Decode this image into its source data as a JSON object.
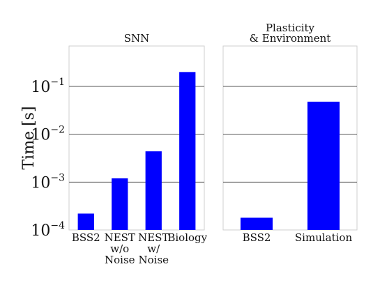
{
  "chart_data": [
    {
      "type": "bar",
      "title": "SNN",
      "ylabel": "Time [s]",
      "yscale": "log",
      "ylim": [
        0.0001,
        0.7
      ],
      "yticks": [
        {
          "value": 0.0001,
          "base": "10",
          "exp": "−4"
        },
        {
          "value": 0.001,
          "base": "10",
          "exp": "−3"
        },
        {
          "value": 0.01,
          "base": "10",
          "exp": "−2"
        },
        {
          "value": 0.1,
          "base": "10",
          "exp": "−1"
        }
      ],
      "grid": true,
      "bar_color": "#0000ff",
      "categories": [
        [
          "BSS2"
        ],
        [
          "NEST",
          "w/o",
          "Noise"
        ],
        [
          "NEST",
          "w/",
          "Noise"
        ],
        [
          "Biology"
        ]
      ],
      "values": [
        0.00022,
        0.0012,
        0.0044,
        0.2
      ]
    },
    {
      "type": "bar",
      "title": [
        "Plasticity",
        "& Environment"
      ],
      "yscale": "log",
      "ylim": [
        0.0001,
        0.7
      ],
      "grid": true,
      "bar_color": "#0000ff",
      "categories": [
        [
          "BSS2"
        ],
        [
          "Simulation"
        ]
      ],
      "values": [
        0.00018,
        0.048
      ]
    }
  ]
}
